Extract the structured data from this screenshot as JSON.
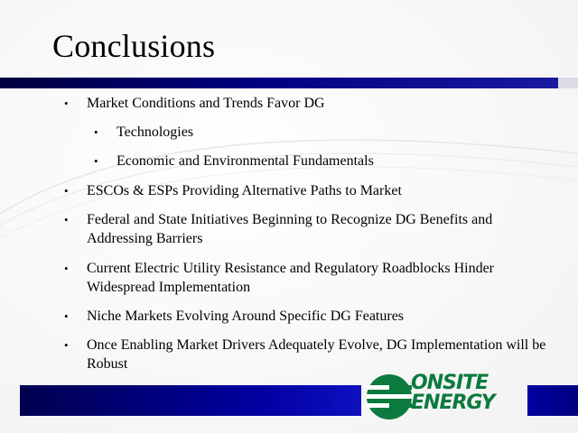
{
  "slide": {
    "title": "Conclusions",
    "bullets": [
      {
        "text": "Market Conditions and Trends Favor DG",
        "level": 1
      },
      {
        "text": "Technologies",
        "level": 2
      },
      {
        "text": "Economic and Environmental Fundamentals",
        "level": 2
      },
      {
        "text": "ESCOs & ESPs Providing Alternative Paths to Market",
        "level": 1
      },
      {
        "text": "Federal and State Initiatives Beginning to Recognize DG Benefits and Addressing Barriers",
        "level": 1
      },
      {
        "text": "Current Electric Utility Resistance and Regulatory Roadblocks Hinder Widespread Implementation",
        "level": 1
      },
      {
        "text": "Niche Markets Evolving Around Specific DG Features",
        "level": 1
      },
      {
        "text": "Once Enabling Market Drivers Adequately Evolve, DG Implementation will be Robust",
        "level": 1
      }
    ],
    "bullet_glyph": "•"
  },
  "logo": {
    "line1": "ONSITE",
    "line2": "ENERGY",
    "color": "#0b7a3e",
    "icon": "onsite-energy-logo-mark"
  },
  "colors": {
    "bar_dark": "#000050",
    "bar_blue": "#0000a0"
  }
}
